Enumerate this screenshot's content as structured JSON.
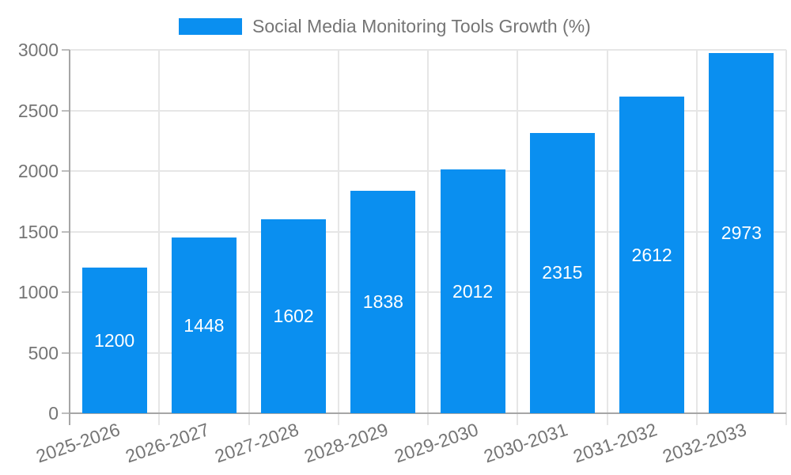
{
  "chart_data": {
    "type": "bar",
    "title": "Social Media Monitoring Tools Growth (%)",
    "series_name": "Social Media Monitoring Tools Growth (%)",
    "categories": [
      "2025-2026",
      "2026-2027",
      "2027-2028",
      "2028-2029",
      "2029-2030",
      "2030-2031",
      "2031-2032",
      "2032-2033"
    ],
    "values": [
      1200,
      1448,
      1602,
      1838,
      2012,
      2315,
      2612,
      2973
    ],
    "bar_value_labels": [
      "1200",
      "1448",
      "1602",
      "1838",
      "2012",
      "2315",
      "2612",
      "2973"
    ],
    "ylim": [
      0,
      3000
    ],
    "yticks": [
      0,
      500,
      1000,
      1500,
      2000,
      2500,
      3000
    ],
    "xlabel": "",
    "ylabel": "",
    "grid": true,
    "legend_position": "top",
    "colors": {
      "bar": "#0A8FF0",
      "bar_label_text": "#ffffff",
      "axis_text": "#757575",
      "gridline": "#e6e6e6",
      "axis_line": "#a6a6a6",
      "background": "#ffffff"
    }
  }
}
